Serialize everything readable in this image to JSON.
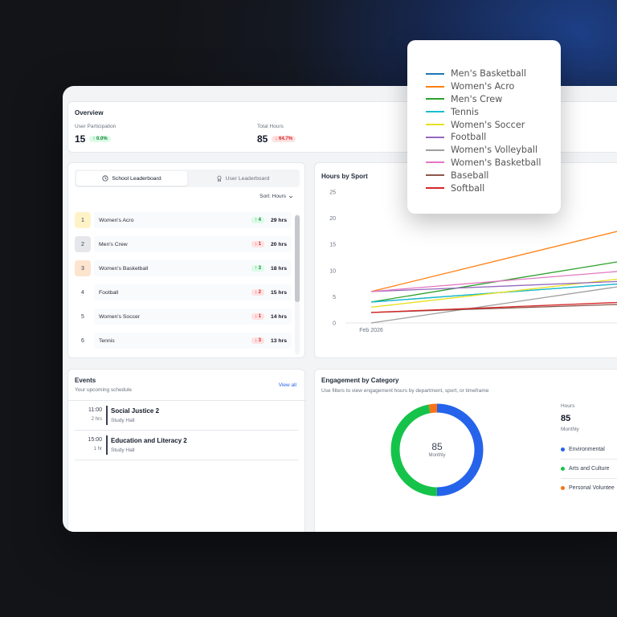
{
  "overview": {
    "title": "Overview",
    "participation": {
      "label": "User Participation",
      "value": "15",
      "badge": "↑ 0.0%"
    },
    "total_hours": {
      "label": "Total Hours",
      "value": "85",
      "badge": "↓ 64.7%"
    }
  },
  "leaderboard": {
    "tabs": [
      {
        "label": "School Leaderboard",
        "icon": "clock-icon",
        "active": true
      },
      {
        "label": "User Leaderboard",
        "icon": "award-icon",
        "active": false
      }
    ],
    "sort_label": "Sort: Hours",
    "rows": [
      {
        "rank": "1",
        "name": "Women's Acro",
        "change": "↑ 4",
        "dir": "up",
        "hours": "29 hrs",
        "medal": "gold"
      },
      {
        "rank": "2",
        "name": "Men's Crew",
        "change": "↓ 1",
        "dir": "down",
        "hours": "20 hrs",
        "medal": "silver"
      },
      {
        "rank": "3",
        "name": "Women's Basketball",
        "change": "↑ 3",
        "dir": "up",
        "hours": "18 hrs",
        "medal": "bronze"
      },
      {
        "rank": "4",
        "name": "Football",
        "change": "↓ 2",
        "dir": "down",
        "hours": "15 hrs",
        "medal": ""
      },
      {
        "rank": "5",
        "name": "Women's Soccer",
        "change": "↓ 1",
        "dir": "down",
        "hours": "14 hrs",
        "medal": ""
      },
      {
        "rank": "6",
        "name": "Tennis",
        "change": "↓ 3",
        "dir": "down",
        "hours": "13 hrs",
        "medal": ""
      }
    ]
  },
  "hours_by_sport": {
    "title": "Hours by Sport"
  },
  "chart_data": {
    "type": "line",
    "title": "Hours by Sport",
    "x": [
      "Feb 2026",
      ""
    ],
    "ylim": [
      0,
      25
    ],
    "yticks": [
      "0",
      "5",
      "10",
      "15",
      "20",
      "25"
    ],
    "xticks": [
      "Feb 2026"
    ],
    "legend_position": "top-right",
    "series": [
      {
        "name": "Men's Basketball",
        "color": "#1f77b4",
        "values": [
          4,
          8.5
        ]
      },
      {
        "name": "Women's Acro",
        "color": "#ff7f0e",
        "values": [
          6,
          21
        ]
      },
      {
        "name": "Men's Crew",
        "color": "#2ca02c",
        "values": [
          4,
          14
        ]
      },
      {
        "name": "Tennis",
        "color": "#17becf",
        "values": [
          4,
          8.5
        ]
      },
      {
        "name": "Women's Soccer",
        "color": "#e8e020",
        "values": [
          3,
          10
        ]
      },
      {
        "name": "Football",
        "color": "#9467bd",
        "values": [
          6,
          8.5
        ]
      },
      {
        "name": "Women's Volleyball",
        "color": "#9e9e9e",
        "values": [
          0,
          9
        ]
      },
      {
        "name": "Women's Basketball",
        "color": "#e377c2",
        "values": [
          6,
          11
        ]
      },
      {
        "name": "Baseball",
        "color": "#8c564b",
        "values": [
          2,
          4
        ]
      },
      {
        "name": "Softball",
        "color": "#d62728",
        "values": [
          2,
          4.5
        ]
      }
    ]
  },
  "events": {
    "title": "Events",
    "subtitle": "Your upcoming schedule",
    "view_all": "View all",
    "items": [
      {
        "time": "11:00",
        "duration": "2 hrs",
        "title": "Social Justice 2",
        "location": "Study Hall"
      },
      {
        "time": "15:00",
        "duration": "1 hr",
        "title": "Education and Literacy 2",
        "location": "Study Hall"
      }
    ]
  },
  "engagement": {
    "title": "Engagement by Category",
    "subtitle": "Use filters to view engagement hours by department, sport, or timeframe",
    "donut_value": "85",
    "donut_label": "Monthly",
    "side_label": "Hours",
    "side_value": "85",
    "side_period": "Monthly",
    "segments": [
      {
        "name": "Environmental",
        "color": "#2563eb",
        "fraction": 0.5
      },
      {
        "name": "Arts and Culture",
        "color": "#16c34a",
        "fraction": 0.47
      },
      {
        "name": "Personal Volunteer",
        "color": "#f97316",
        "fraction": 0.03
      }
    ],
    "legend_labels": [
      "Environmental",
      "Arts and Culture",
      "Personal Voluntee"
    ]
  }
}
